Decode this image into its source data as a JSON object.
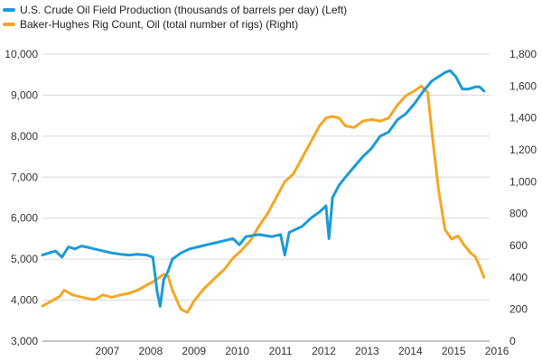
{
  "chart_data": {
    "type": "line",
    "x_ticks": [
      "2007",
      "2008",
      "2009",
      "2010",
      "2011",
      "2012",
      "2013",
      "2014",
      "2015",
      "2016"
    ],
    "y_left_ticks": [
      "3,000",
      "4,000",
      "5,000",
      "6,000",
      "7,000",
      "8,000",
      "9,000",
      "10,000"
    ],
    "y_right_ticks": [
      "0",
      "200",
      "400",
      "600",
      "800",
      "1,000",
      "1,200",
      "1,400",
      "1,600",
      "1,800"
    ],
    "y_left_range": [
      3000,
      10000
    ],
    "y_right_range": [
      0,
      1800
    ],
    "x_range": [
      2006.0,
      2016.33
    ],
    "grid": "horizontal",
    "legend_position": "top-left",
    "series": [
      {
        "name": "U.S. Crude Oil Field Production (thousands of barrels per day) (Left)",
        "axis": "left",
        "color": "#1a9bd7",
        "points": [
          [
            2006.0,
            5100
          ],
          [
            2006.15,
            5150
          ],
          [
            2006.3,
            5200
          ],
          [
            2006.45,
            5050
          ],
          [
            2006.6,
            5300
          ],
          [
            2006.75,
            5250
          ],
          [
            2006.9,
            5320
          ],
          [
            2007.0,
            5300
          ],
          [
            2007.2,
            5250
          ],
          [
            2007.4,
            5200
          ],
          [
            2007.6,
            5150
          ],
          [
            2007.8,
            5120
          ],
          [
            2008.0,
            5100
          ],
          [
            2008.2,
            5120
          ],
          [
            2008.4,
            5100
          ],
          [
            2008.55,
            5050
          ],
          [
            2008.65,
            4200
          ],
          [
            2008.72,
            3850
          ],
          [
            2008.8,
            4500
          ],
          [
            2008.9,
            4700
          ],
          [
            2009.0,
            5000
          ],
          [
            2009.2,
            5150
          ],
          [
            2009.4,
            5250
          ],
          [
            2009.6,
            5300
          ],
          [
            2009.8,
            5350
          ],
          [
            2010.0,
            5400
          ],
          [
            2010.2,
            5450
          ],
          [
            2010.4,
            5500
          ],
          [
            2010.55,
            5350
          ],
          [
            2010.7,
            5550
          ],
          [
            2011.0,
            5600
          ],
          [
            2011.3,
            5550
          ],
          [
            2011.5,
            5600
          ],
          [
            2011.6,
            5100
          ],
          [
            2011.7,
            5650
          ],
          [
            2011.8,
            5700
          ],
          [
            2012.0,
            5800
          ],
          [
            2012.2,
            6000
          ],
          [
            2012.4,
            6150
          ],
          [
            2012.55,
            6300
          ],
          [
            2012.62,
            5500
          ],
          [
            2012.7,
            6500
          ],
          [
            2012.85,
            6800
          ],
          [
            2013.0,
            7000
          ],
          [
            2013.2,
            7250
          ],
          [
            2013.4,
            7500
          ],
          [
            2013.6,
            7700
          ],
          [
            2013.8,
            8000
          ],
          [
            2014.0,
            8100
          ],
          [
            2014.2,
            8400
          ],
          [
            2014.4,
            8550
          ],
          [
            2014.6,
            8800
          ],
          [
            2014.8,
            9100
          ],
          [
            2015.0,
            9350
          ],
          [
            2015.15,
            9450
          ],
          [
            2015.3,
            9550
          ],
          [
            2015.42,
            9600
          ],
          [
            2015.55,
            9450
          ],
          [
            2015.7,
            9150
          ],
          [
            2015.85,
            9150
          ],
          [
            2016.0,
            9200
          ],
          [
            2016.1,
            9200
          ],
          [
            2016.2,
            9100
          ]
        ]
      },
      {
        "name": "Baker-Hughes Rig Count, Oil (total number of rigs) (Right)",
        "axis": "right",
        "color": "#f5a623",
        "points": [
          [
            2006.0,
            220
          ],
          [
            2006.2,
            250
          ],
          [
            2006.4,
            280
          ],
          [
            2006.5,
            320
          ],
          [
            2006.7,
            290
          ],
          [
            2007.0,
            270
          ],
          [
            2007.2,
            260
          ],
          [
            2007.4,
            290
          ],
          [
            2007.6,
            275
          ],
          [
            2007.8,
            290
          ],
          [
            2008.0,
            300
          ],
          [
            2008.2,
            320
          ],
          [
            2008.4,
            350
          ],
          [
            2008.6,
            380
          ],
          [
            2008.8,
            420
          ],
          [
            2008.9,
            410
          ],
          [
            2009.0,
            320
          ],
          [
            2009.2,
            200
          ],
          [
            2009.35,
            180
          ],
          [
            2009.5,
            250
          ],
          [
            2009.7,
            320
          ],
          [
            2010.0,
            400
          ],
          [
            2010.2,
            450
          ],
          [
            2010.4,
            520
          ],
          [
            2010.6,
            570
          ],
          [
            2010.8,
            630
          ],
          [
            2011.0,
            720
          ],
          [
            2011.2,
            800
          ],
          [
            2011.4,
            900
          ],
          [
            2011.6,
            1000
          ],
          [
            2011.8,
            1050
          ],
          [
            2012.0,
            1150
          ],
          [
            2012.2,
            1250
          ],
          [
            2012.4,
            1350
          ],
          [
            2012.55,
            1400
          ],
          [
            2012.7,
            1410
          ],
          [
            2012.85,
            1400
          ],
          [
            2013.0,
            1350
          ],
          [
            2013.2,
            1340
          ],
          [
            2013.4,
            1380
          ],
          [
            2013.6,
            1390
          ],
          [
            2013.8,
            1380
          ],
          [
            2014.0,
            1400
          ],
          [
            2014.2,
            1480
          ],
          [
            2014.4,
            1540
          ],
          [
            2014.6,
            1570
          ],
          [
            2014.75,
            1600
          ],
          [
            2014.9,
            1560
          ],
          [
            2015.0,
            1300
          ],
          [
            2015.15,
            950
          ],
          [
            2015.3,
            700
          ],
          [
            2015.45,
            640
          ],
          [
            2015.6,
            660
          ],
          [
            2015.75,
            600
          ],
          [
            2015.9,
            550
          ],
          [
            2016.0,
            530
          ],
          [
            2016.1,
            470
          ],
          [
            2016.2,
            400
          ]
        ]
      }
    ]
  }
}
